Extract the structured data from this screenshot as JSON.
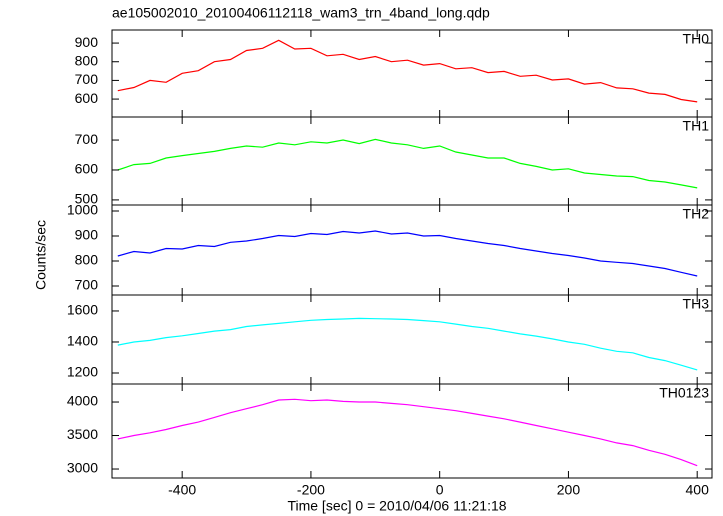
{
  "chart_data": {
    "type": "line",
    "title": "ae105002010_20100406112118_wam3_trn_4band_long.qdp",
    "xlabel": "Time [sec] 0 = 2010/04/06 11:21:18",
    "ylabel": "Counts/sec",
    "xlim": [
      -509,
      423
    ],
    "xticks": [
      -400,
      -200,
      0,
      200,
      400
    ],
    "x": [
      -500,
      -475,
      -450,
      -425,
      -400,
      -375,
      -350,
      -325,
      -300,
      -275,
      -250,
      -225,
      -200,
      -175,
      -150,
      -125,
      -100,
      -75,
      -50,
      -25,
      0,
      25,
      50,
      75,
      100,
      125,
      150,
      175,
      200,
      225,
      250,
      275,
      300,
      325,
      350,
      375,
      400
    ],
    "series": [
      {
        "name": "TH0",
        "color": "#ff0000",
        "ylim": [
          504,
          970
        ],
        "yticks": [
          600,
          700,
          800,
          900
        ],
        "values": [
          645,
          662,
          700,
          690,
          738,
          752,
          800,
          812,
          860,
          872,
          915,
          868,
          872,
          832,
          840,
          812,
          828,
          800,
          808,
          782,
          790,
          762,
          768,
          742,
          748,
          722,
          728,
          702,
          708,
          680,
          688,
          660,
          655,
          632,
          625,
          598,
          585
        ]
      },
      {
        "name": "TH1",
        "color": "#00ff00",
        "ylim": [
          483,
          777
        ],
        "yticks": [
          500,
          600,
          700
        ],
        "values": [
          600,
          618,
          622,
          640,
          648,
          655,
          662,
          672,
          680,
          676,
          690,
          684,
          694,
          690,
          700,
          688,
          702,
          690,
          684,
          672,
          680,
          660,
          650,
          640,
          640,
          622,
          612,
          600,
          604,
          590,
          585,
          580,
          578,
          565,
          560,
          550,
          540
        ]
      },
      {
        "name": "TH2",
        "color": "#0000ff",
        "ylim": [
          664,
          1024
        ],
        "yticks": [
          700,
          800,
          900,
          1000
        ],
        "values": [
          820,
          838,
          832,
          850,
          848,
          862,
          858,
          875,
          880,
          890,
          902,
          898,
          910,
          906,
          918,
          912,
          920,
          908,
          912,
          900,
          902,
          890,
          880,
          870,
          862,
          850,
          840,
          830,
          822,
          812,
          800,
          795,
          790,
          780,
          770,
          755,
          740
        ]
      },
      {
        "name": "TH3",
        "color": "#00ffff",
        "ylim": [
          1129,
          1703
        ],
        "yticks": [
          1200,
          1400,
          1600
        ],
        "values": [
          1380,
          1400,
          1410,
          1428,
          1440,
          1455,
          1470,
          1480,
          1500,
          1510,
          1520,
          1530,
          1540,
          1545,
          1548,
          1552,
          1550,
          1548,
          1545,
          1538,
          1530,
          1515,
          1500,
          1488,
          1470,
          1452,
          1438,
          1420,
          1400,
          1385,
          1360,
          1340,
          1330,
          1300,
          1280,
          1250,
          1220
        ]
      },
      {
        "name": "TH0123",
        "color": "#ff00ff",
        "ylim": [
          2866,
          4269
        ],
        "yticks": [
          3000,
          3500,
          4000
        ],
        "values": [
          3450,
          3500,
          3540,
          3590,
          3650,
          3700,
          3770,
          3840,
          3900,
          3960,
          4030,
          4040,
          4020,
          4030,
          4010,
          4000,
          4000,
          3980,
          3960,
          3930,
          3900,
          3870,
          3830,
          3790,
          3750,
          3700,
          3650,
          3600,
          3550,
          3500,
          3450,
          3390,
          3350,
          3280,
          3220,
          3140,
          3050
        ]
      }
    ]
  }
}
